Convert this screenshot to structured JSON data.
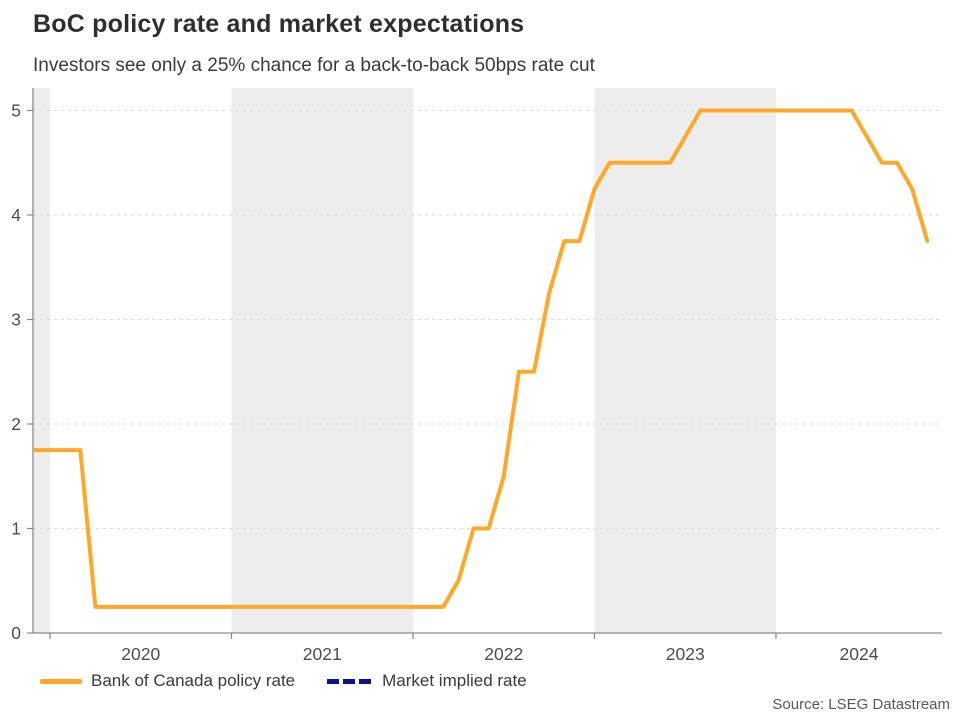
{
  "header": {
    "title": "BoC policy rate and market expectations",
    "subtitle": "Investors see only a 25% chance for a back-to-back 50bps rate cut"
  },
  "source_label": "Source: LSEG Datastream",
  "colors": {
    "policy_line": "#FFA828",
    "implied_line": "#0D0D96",
    "year_band": "#EDEDED",
    "gridline": "#D9D9D9",
    "axis": "#8C8C8C",
    "tick_label": "#4D4D4D"
  },
  "legend": {
    "items": [
      {
        "label": "Bank of Canada policy rate",
        "color": "#FFA828",
        "style": "solid"
      },
      {
        "label": "Market implied rate",
        "color": "#0D0D96",
        "style": "dashed"
      }
    ]
  },
  "chart_data": {
    "type": "line",
    "title": "BoC policy rate and market expectations",
    "xlabel": "",
    "ylabel": "",
    "ylim": [
      0,
      5.22
    ],
    "y_ticks": [
      0,
      1,
      2,
      3,
      4,
      5
    ],
    "x_ticks": [
      "2020",
      "2021",
      "2022",
      "2023",
      "2024"
    ],
    "x_range_months": [
      "2019-11",
      "2024-12"
    ],
    "shaded_years": [
      2019,
      2021,
      2023
    ],
    "grid": "horizontal-dashed",
    "legend_position": "bottom-left",
    "series": [
      {
        "name": "Bank of Canada policy rate",
        "color": "#FFA828",
        "dash": "solid",
        "points": [
          [
            "2019-11",
            1.75
          ],
          [
            "2019-12",
            1.75
          ],
          [
            "2020-01",
            1.75
          ],
          [
            "2020-02",
            1.75
          ],
          [
            "2020-03",
            0.25
          ],
          [
            "2020-04",
            0.25
          ],
          [
            "2020-05",
            0.25
          ],
          [
            "2020-06",
            0.25
          ],
          [
            "2020-07",
            0.25
          ],
          [
            "2020-08",
            0.25
          ],
          [
            "2020-09",
            0.25
          ],
          [
            "2020-10",
            0.25
          ],
          [
            "2020-11",
            0.25
          ],
          [
            "2020-12",
            0.25
          ],
          [
            "2021-01",
            0.25
          ],
          [
            "2021-02",
            0.25
          ],
          [
            "2021-03",
            0.25
          ],
          [
            "2021-04",
            0.25
          ],
          [
            "2021-05",
            0.25
          ],
          [
            "2021-06",
            0.25
          ],
          [
            "2021-07",
            0.25
          ],
          [
            "2021-08",
            0.25
          ],
          [
            "2021-09",
            0.25
          ],
          [
            "2021-10",
            0.25
          ],
          [
            "2021-11",
            0.25
          ],
          [
            "2021-12",
            0.25
          ],
          [
            "2022-01",
            0.25
          ],
          [
            "2022-02",
            0.25
          ],
          [
            "2022-03",
            0.5
          ],
          [
            "2022-04",
            1.0
          ],
          [
            "2022-05",
            1.0
          ],
          [
            "2022-06",
            1.5
          ],
          [
            "2022-07",
            2.5
          ],
          [
            "2022-08",
            2.5
          ],
          [
            "2022-09",
            3.25
          ],
          [
            "2022-10",
            3.75
          ],
          [
            "2022-11",
            3.75
          ],
          [
            "2022-12",
            4.25
          ],
          [
            "2023-01",
            4.5
          ],
          [
            "2023-02",
            4.5
          ],
          [
            "2023-03",
            4.5
          ],
          [
            "2023-04",
            4.5
          ],
          [
            "2023-05",
            4.5
          ],
          [
            "2023-06",
            4.75
          ],
          [
            "2023-07",
            5.0
          ],
          [
            "2023-08",
            5.0
          ],
          [
            "2023-09",
            5.0
          ],
          [
            "2023-10",
            5.0
          ],
          [
            "2023-11",
            5.0
          ],
          [
            "2023-12",
            5.0
          ],
          [
            "2024-01",
            5.0
          ],
          [
            "2024-02",
            5.0
          ],
          [
            "2024-03",
            5.0
          ],
          [
            "2024-04",
            5.0
          ],
          [
            "2024-05",
            5.0
          ],
          [
            "2024-06",
            4.75
          ],
          [
            "2024-07",
            4.5
          ],
          [
            "2024-08",
            4.5
          ],
          [
            "2024-09",
            4.25
          ],
          [
            "2024-10",
            3.75
          ]
        ]
      },
      {
        "name": "Market implied rate",
        "color": "#0D0D96",
        "dash": "dashed",
        "points": []
      }
    ]
  }
}
